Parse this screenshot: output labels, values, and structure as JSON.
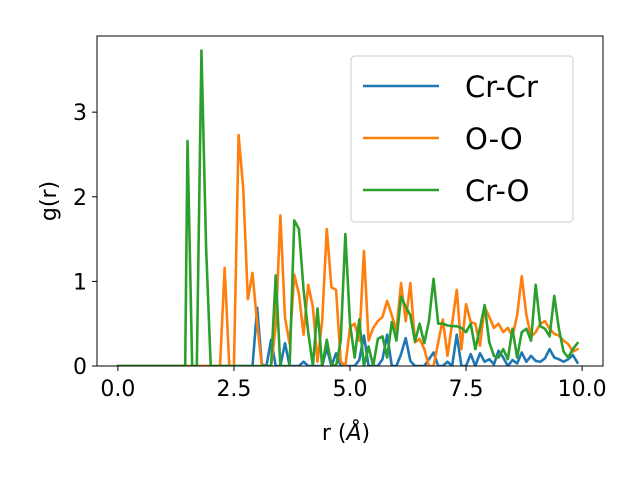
{
  "chart_data": {
    "type": "line",
    "xlabel": "r (",
    "xlabel_unit": "Å",
    "xlabel_close": ")",
    "ylabel": "g(r)",
    "xlim": [
      -0.45,
      10.45
    ],
    "ylim": [
      0,
      3.9
    ],
    "xticks": [
      0.0,
      2.5,
      5.0,
      7.5,
      10.0
    ],
    "xtick_labels": [
      "0.0",
      "2.5",
      "5.0",
      "7.5",
      "10.0"
    ],
    "yticks": [
      0,
      1,
      2,
      3
    ],
    "ytick_labels": [
      "0",
      "1",
      "2",
      "3"
    ],
    "grid": false,
    "legend_position": "top-right",
    "series": [
      {
        "name": "Cr-Cr",
        "color": "#1f77b4",
        "points": [
          [
            0,
            0
          ],
          [
            2.9,
            0
          ],
          [
            3.0,
            0.69
          ],
          [
            3.1,
            0.02
          ],
          [
            3.2,
            0
          ],
          [
            3.3,
            0.31
          ],
          [
            3.4,
            0
          ],
          [
            3.5,
            0
          ],
          [
            3.6,
            0.27
          ],
          [
            3.7,
            0
          ],
          [
            3.9,
            0
          ],
          [
            4.0,
            0.05
          ],
          [
            4.1,
            0
          ],
          [
            4.4,
            0
          ],
          [
            4.5,
            0.21
          ],
          [
            4.6,
            0
          ],
          [
            4.7,
            0.15
          ],
          [
            4.8,
            0
          ],
          [
            5.1,
            0
          ],
          [
            5.2,
            0.07
          ],
          [
            5.3,
            0.36
          ],
          [
            5.4,
            0
          ],
          [
            5.6,
            0
          ],
          [
            5.7,
            0.08
          ],
          [
            5.8,
            0.37
          ],
          [
            5.9,
            0
          ],
          [
            6.0,
            0
          ],
          [
            6.1,
            0.14
          ],
          [
            6.2,
            0.33
          ],
          [
            6.3,
            0.06
          ],
          [
            6.4,
            0
          ],
          [
            6.6,
            0
          ],
          [
            6.7,
            0.08
          ],
          [
            6.8,
            0.16
          ],
          [
            6.9,
            0
          ],
          [
            7.0,
            0
          ],
          [
            7.1,
            0.05
          ],
          [
            7.2,
            0
          ],
          [
            7.3,
            0.37
          ],
          [
            7.4,
            0
          ],
          [
            7.5,
            0
          ],
          [
            7.6,
            0.14
          ],
          [
            7.7,
            0
          ],
          [
            7.8,
            0.15
          ],
          [
            7.9,
            0.05
          ],
          [
            8.0,
            0.08
          ],
          [
            8.1,
            0.02
          ],
          [
            8.2,
            0.18
          ],
          [
            8.3,
            0.1
          ],
          [
            8.4,
            0
          ],
          [
            8.5,
            0.07
          ],
          [
            8.6,
            0.03
          ],
          [
            8.7,
            0.16
          ],
          [
            8.8,
            0.05
          ],
          [
            8.9,
            0.12
          ],
          [
            9.0,
            0.06
          ],
          [
            9.1,
            0.05
          ],
          [
            9.2,
            0.09
          ],
          [
            9.3,
            0.2
          ],
          [
            9.4,
            0.1
          ],
          [
            9.5,
            0.08
          ],
          [
            9.6,
            0.05
          ],
          [
            9.7,
            0.08
          ],
          [
            9.8,
            0.13
          ],
          [
            9.9,
            0.04
          ]
        ]
      },
      {
        "name": "O-O",
        "color": "#ff7f0e",
        "points": [
          [
            0,
            0
          ],
          [
            2.2,
            0
          ],
          [
            2.3,
            1.16
          ],
          [
            2.4,
            0
          ],
          [
            2.5,
            0
          ],
          [
            2.6,
            2.73
          ],
          [
            2.7,
            2.1
          ],
          [
            2.8,
            0.79
          ],
          [
            2.9,
            1.1
          ],
          [
            3.0,
            0.5
          ],
          [
            3.1,
            0
          ],
          [
            3.3,
            0
          ],
          [
            3.4,
            0.47
          ],
          [
            3.5,
            1.78
          ],
          [
            3.6,
            0.57
          ],
          [
            3.7,
            0.26
          ],
          [
            3.8,
            1.08
          ],
          [
            3.9,
            0.85
          ],
          [
            4.0,
            0.37
          ],
          [
            4.1,
            0.96
          ],
          [
            4.2,
            0.7
          ],
          [
            4.3,
            0.05
          ],
          [
            4.4,
            0.53
          ],
          [
            4.5,
            1.62
          ],
          [
            4.6,
            0.93
          ],
          [
            4.7,
            0.9
          ],
          [
            4.8,
            0.05
          ],
          [
            4.9,
            0
          ],
          [
            5.0,
            0.46
          ],
          [
            5.1,
            0.5
          ],
          [
            5.2,
            0.3
          ],
          [
            5.3,
            1.36
          ],
          [
            5.4,
            0.3
          ],
          [
            5.5,
            0.45
          ],
          [
            5.6,
            0.53
          ],
          [
            5.7,
            0.58
          ],
          [
            5.8,
            0.77
          ],
          [
            5.9,
            0.6
          ],
          [
            6.0,
            0.42
          ],
          [
            6.1,
            0.98
          ],
          [
            6.2,
            0.53
          ],
          [
            6.3,
            0.98
          ],
          [
            6.4,
            0.28
          ],
          [
            6.5,
            0.32
          ],
          [
            6.6,
            0.2
          ],
          [
            6.7,
            0
          ],
          [
            6.8,
            0
          ],
          [
            6.9,
            0.28
          ],
          [
            7.0,
            0.55
          ],
          [
            7.1,
            0.12
          ],
          [
            7.2,
            0.5
          ],
          [
            7.3,
            0.9
          ],
          [
            7.4,
            0.2
          ],
          [
            7.5,
            0.73
          ],
          [
            7.6,
            0.52
          ],
          [
            7.7,
            0.5
          ],
          [
            7.8,
            0.24
          ],
          [
            7.9,
            0.7
          ],
          [
            8.0,
            0.58
          ],
          [
            8.1,
            0.45
          ],
          [
            8.2,
            0.5
          ],
          [
            8.3,
            0.4
          ],
          [
            8.4,
            0.45
          ],
          [
            8.5,
            0.35
          ],
          [
            8.6,
            0.6
          ],
          [
            8.7,
            1.06
          ],
          [
            8.8,
            0.6
          ],
          [
            8.9,
            0.35
          ],
          [
            9.0,
            0.4
          ],
          [
            9.1,
            0.5
          ],
          [
            9.2,
            0.53
          ],
          [
            9.3,
            0.44
          ],
          [
            9.4,
            0.38
          ],
          [
            9.5,
            0.36
          ],
          [
            9.6,
            0.3
          ],
          [
            9.7,
            0.26
          ],
          [
            9.8,
            0.17
          ],
          [
            9.9,
            0.2
          ]
        ]
      },
      {
        "name": "Cr-O",
        "color": "#2ca02c",
        "points": [
          [
            0,
            0
          ],
          [
            1.45,
            0
          ],
          [
            1.5,
            2.66
          ],
          [
            1.6,
            0
          ],
          [
            1.7,
            0
          ],
          [
            1.8,
            3.73
          ],
          [
            1.9,
            1.4
          ],
          [
            2.0,
            0
          ],
          [
            3.3,
            0
          ],
          [
            3.4,
            1.07
          ],
          [
            3.5,
            0
          ],
          [
            3.7,
            0
          ],
          [
            3.8,
            1.72
          ],
          [
            3.9,
            1.62
          ],
          [
            4.0,
            0.9
          ],
          [
            4.1,
            0.4
          ],
          [
            4.2,
            0
          ],
          [
            4.3,
            0.68
          ],
          [
            4.4,
            0
          ],
          [
            4.5,
            0.31
          ],
          [
            4.6,
            0.02
          ],
          [
            4.7,
            0
          ],
          [
            4.8,
            0.3
          ],
          [
            4.9,
            1.56
          ],
          [
            5.0,
            0.5
          ],
          [
            5.1,
            0.1
          ],
          [
            5.2,
            0.55
          ],
          [
            5.3,
            0
          ],
          [
            5.4,
            0.23
          ],
          [
            5.5,
            0
          ],
          [
            5.6,
            0.32
          ],
          [
            5.7,
            0.35
          ],
          [
            5.8,
            0.1
          ],
          [
            5.9,
            0.52
          ],
          [
            6.0,
            0.3
          ],
          [
            6.1,
            0.82
          ],
          [
            6.2,
            0.7
          ],
          [
            6.3,
            0.6
          ],
          [
            6.4,
            0.29
          ],
          [
            6.5,
            0.5
          ],
          [
            6.6,
            0.27
          ],
          [
            6.7,
            0.53
          ],
          [
            6.8,
            1.03
          ],
          [
            6.9,
            0.5
          ],
          [
            7.0,
            0.5
          ],
          [
            7.1,
            0.48
          ],
          [
            7.2,
            0.47
          ],
          [
            7.3,
            0.47
          ],
          [
            7.4,
            0.45
          ],
          [
            7.5,
            0.4
          ],
          [
            7.6,
            0.5
          ],
          [
            7.7,
            0.2
          ],
          [
            7.8,
            0.45
          ],
          [
            7.9,
            0.72
          ],
          [
            8.0,
            0.28
          ],
          [
            8.1,
            0.12
          ],
          [
            8.2,
            0.1
          ],
          [
            8.3,
            0.2
          ],
          [
            8.4,
            0.08
          ],
          [
            8.5,
            0.44
          ],
          [
            8.6,
            0.1
          ],
          [
            8.7,
            0.4
          ],
          [
            8.8,
            0.44
          ],
          [
            8.9,
            0.3
          ],
          [
            9.0,
            0.96
          ],
          [
            9.1,
            0.47
          ],
          [
            9.2,
            0.44
          ],
          [
            9.3,
            0.35
          ],
          [
            9.4,
            0.83
          ],
          [
            9.5,
            0.44
          ],
          [
            9.6,
            0.17
          ],
          [
            9.7,
            0.1
          ],
          [
            9.8,
            0.2
          ],
          [
            9.9,
            0.27
          ]
        ]
      }
    ]
  }
}
